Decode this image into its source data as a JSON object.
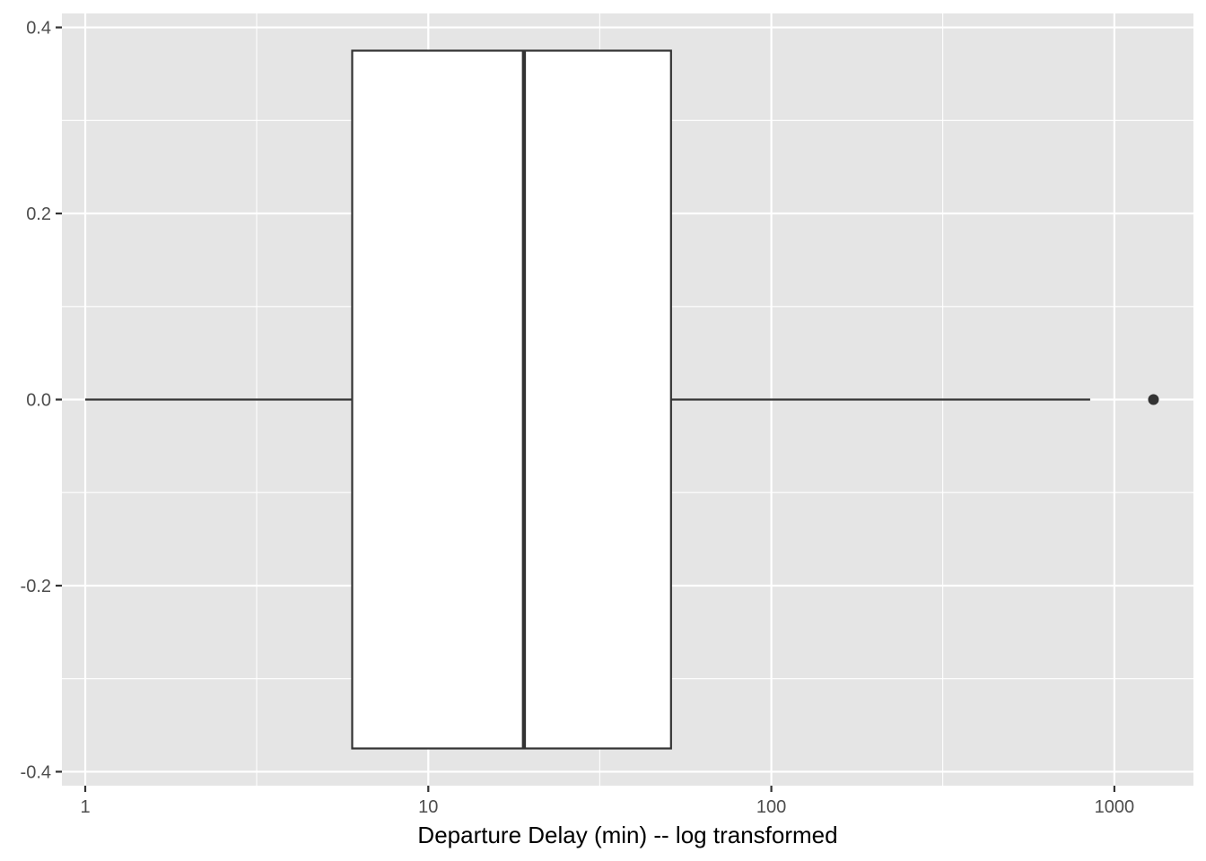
{
  "chart_data": {
    "type": "boxplot",
    "orientation": "horizontal",
    "title": "",
    "xlabel": "Departure Delay (min) -- log transformed",
    "ylabel": "",
    "x_scale": "log10",
    "xlim": [
      0.855,
      1700
    ],
    "ylim": [
      -0.415,
      0.415
    ],
    "x_ticks": [
      {
        "value": 1,
        "label": "1"
      },
      {
        "value": 10,
        "label": "10"
      },
      {
        "value": 100,
        "label": "100"
      },
      {
        "value": 1000,
        "label": "1000"
      }
    ],
    "x_minor_ticks": [
      3.16,
      31.6,
      316
    ],
    "y_ticks": [
      {
        "value": 0.4,
        "label": "0.4"
      },
      {
        "value": 0.2,
        "label": "0.2"
      },
      {
        "value": 0.0,
        "label": "0.0"
      },
      {
        "value": -0.2,
        "label": "-0.2"
      },
      {
        "value": -0.4,
        "label": "-0.4"
      }
    ],
    "y_minor_ticks": [
      0.3,
      0.1,
      -0.1,
      -0.3
    ],
    "box": {
      "whisker_low": 1,
      "q1": 6,
      "median": 19,
      "q3": 51,
      "whisker_high": 850,
      "y_center": 0,
      "half_height": 0.375,
      "fill": "#ffffff",
      "outline": "#333333"
    },
    "outliers": [
      1300
    ],
    "grid": true,
    "panel_background": "#e5e5e5",
    "grid_color": "#ffffff"
  }
}
